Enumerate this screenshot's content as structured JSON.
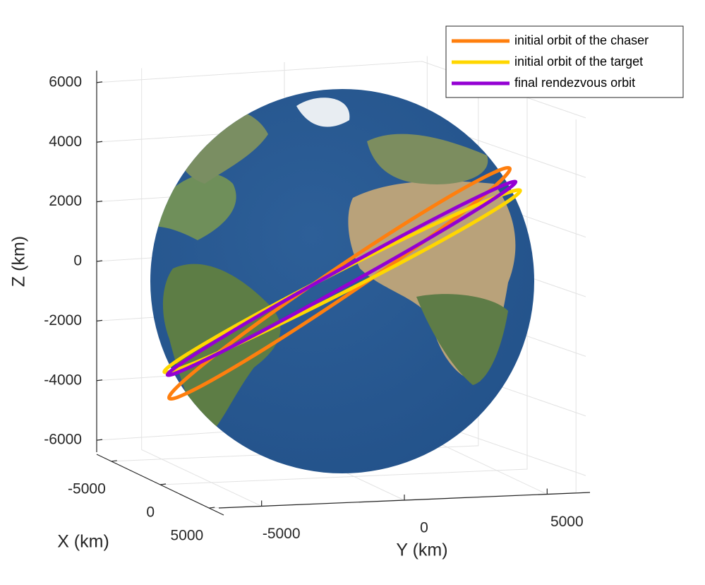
{
  "chart_data": {
    "type": "globe3d",
    "xlabel": "X (km)",
    "ylabel": "Y (km)",
    "zlabel": "Z (km)",
    "xlim": [
      -6500,
      6500
    ],
    "xticks": [
      -5000,
      0,
      5000
    ],
    "ylim": [
      -6500,
      6500
    ],
    "yticks": [
      -5000,
      0,
      5000
    ],
    "zlim": [
      -6400,
      6400
    ],
    "zticks": [
      -6000,
      -4000,
      -2000,
      0,
      2000,
      4000,
      6000
    ],
    "grid": true,
    "legend": "upper right",
    "series": [
      {
        "name": "initial orbit of the chaser",
        "color": "#ff7f0e"
      },
      {
        "name": "initial orbit of the target",
        "color": "#ffd700"
      },
      {
        "name": "final rendezvous orbit",
        "color": "#9400d3"
      }
    ]
  }
}
